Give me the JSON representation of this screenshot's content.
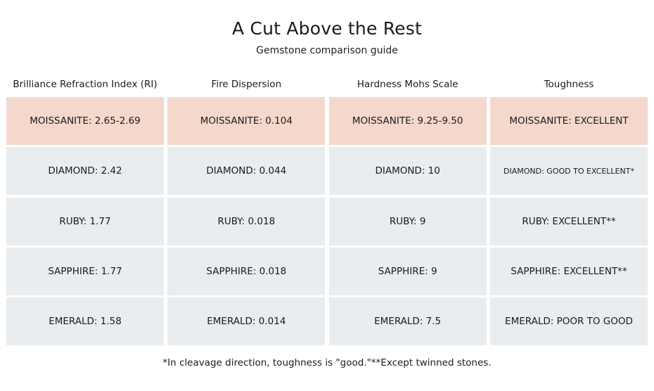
{
  "title": "A Cut Above the Rest",
  "subtitle": "Gemstone comparison guide",
  "columns": [
    "Brilliance Refraction Index (RI)",
    "Fire Dispersion",
    "Hardness Mohs Scale",
    "Toughness"
  ],
  "rows": [
    [
      "MOISSANITE: 2.65-2.69",
      "MOISSANITE: 0.104",
      "MOISSANITE: 9.25-9.50",
      "MOISSANITE: EXCELLENT"
    ],
    [
      "DIAMOND: 2.42",
      "DIAMOND: 0.044",
      "DIAMOND: 10",
      "DIAMOND: GOOD TO EXCELLENT*"
    ],
    [
      "RUBY: 1.77",
      "RUBY: 0.018",
      "RUBY: 9",
      "RUBY: EXCELLENT**"
    ],
    [
      "SAPPHIRE: 1.77",
      "SAPPHIRE: 0.018",
      "SAPPHIRE: 9",
      "SAPPHIRE: EXCELLENT**"
    ],
    [
      "EMERALD: 1.58",
      "EMERALD: 0.014",
      "EMERALD: 7.5",
      "EMERALD: POOR TO GOOD"
    ]
  ],
  "footnote": "*In cleavage direction, toughness is \"good.\"**Except twinned stones.",
  "colors": {
    "highlight_row": "#f4d8cc",
    "row_background": "#e9edf0"
  }
}
